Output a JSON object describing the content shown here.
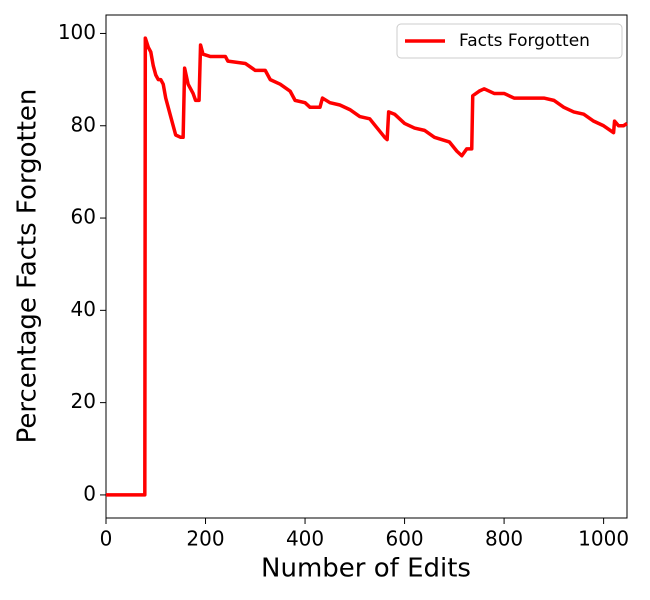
{
  "chart_data": {
    "type": "line",
    "xlabel": "Number of Edits",
    "ylabel": "Percentage Facts Forgotten",
    "x": [
      0,
      75,
      78,
      79,
      85,
      90,
      95,
      100,
      105,
      110,
      115,
      120,
      130,
      140,
      150,
      155,
      158,
      165,
      175,
      180,
      187,
      190,
      195,
      210,
      240,
      245,
      280,
      300,
      320,
      330,
      350,
      370,
      380,
      400,
      410,
      430,
      435,
      450,
      470,
      490,
      510,
      530,
      545,
      560,
      565,
      568,
      580,
      600,
      620,
      640,
      660,
      690,
      705,
      715,
      725,
      735,
      737,
      750,
      760,
      780,
      800,
      820,
      840,
      860,
      880,
      900,
      920,
      940,
      960,
      980,
      1000,
      1020,
      1022,
      1030,
      1040,
      1047
    ],
    "series": [
      {
        "name": "Facts Forgotten",
        "color": "#ff0000",
        "values": [
          0,
          0,
          0,
          99,
          97,
          96,
          93,
          91,
          90,
          90,
          89,
          86,
          82,
          78,
          77.5,
          77.5,
          92.5,
          89,
          87,
          85.5,
          85.5,
          97.5,
          95.5,
          95,
          95,
          94,
          93.5,
          92,
          92,
          90,
          89,
          87.5,
          85.5,
          85,
          84,
          84,
          86,
          85,
          84.5,
          83.5,
          82,
          81.5,
          79.5,
          77.5,
          77,
          83,
          82.5,
          80.5,
          79.5,
          79,
          77.5,
          76.5,
          74.5,
          73.5,
          75,
          75,
          86.5,
          87.5,
          88,
          87,
          87,
          86,
          86,
          86,
          86,
          85.5,
          84,
          83,
          82.5,
          81,
          80,
          78.5,
          81,
          80,
          80,
          80.5
        ]
      }
    ],
    "xlim": [
      0,
      1047
    ],
    "ylim": [
      -5,
      104
    ],
    "xticks": [
      0,
      200,
      400,
      600,
      800,
      1000
    ],
    "yticks": [
      0,
      20,
      40,
      60,
      80,
      100
    ],
    "legend": "upper right"
  }
}
